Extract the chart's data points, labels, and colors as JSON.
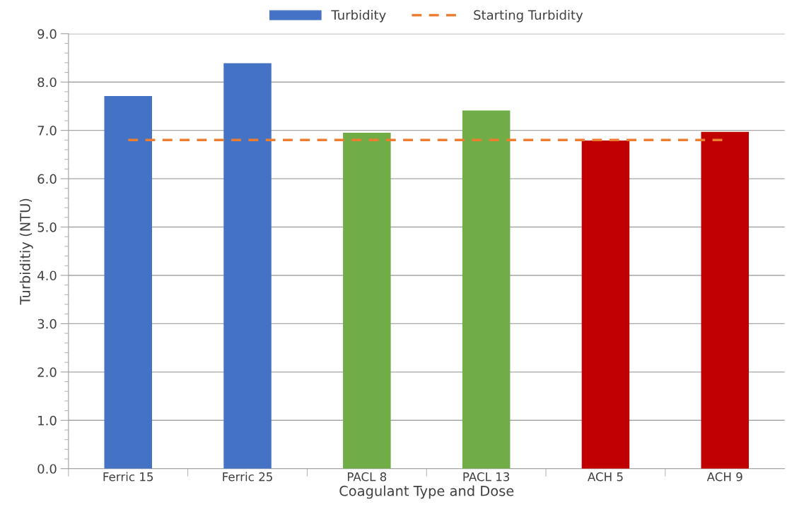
{
  "chart_data": {
    "type": "bar",
    "xlabel": "Coagulant Type and Dose",
    "ylabel": "Turbiditiy (NTU)",
    "categories": [
      "Ferric 15",
      "Ferric 25",
      "PACL 8",
      "PACL 13",
      "ACH 5",
      "ACH 9"
    ],
    "series": [
      {
        "name": "Turbidity",
        "color": "#4472c4",
        "colors": [
          "#4472c4",
          "#4472c4",
          "#70ad47",
          "#70ad47",
          "#c00000",
          "#c00000"
        ],
        "values": [
          7.71,
          8.39,
          6.95,
          7.41,
          6.79,
          6.97
        ]
      },
      {
        "name": "Starting Turbidity",
        "type": "line",
        "color": "#ed7d31",
        "line_style": "dashed",
        "marker": "none",
        "values": [
          6.8,
          6.8,
          6.8,
          6.8,
          6.8,
          6.8
        ]
      }
    ],
    "ylim": [
      0,
      9
    ],
    "yticks": [
      {
        "value": 0,
        "label": "0.0"
      },
      {
        "value": 1,
        "label": "1.0"
      },
      {
        "value": 2,
        "label": "2.0"
      },
      {
        "value": 3,
        "label": "3.0"
      },
      {
        "value": 4,
        "label": "4.0"
      },
      {
        "value": 5,
        "label": "5.0"
      },
      {
        "value": 6,
        "label": "6.0"
      },
      {
        "value": 7,
        "label": "7.0"
      },
      {
        "value": 8,
        "label": "8.0"
      },
      {
        "value": 9,
        "label": "9.0"
      }
    ],
    "grid": "y",
    "legend": "top"
  }
}
